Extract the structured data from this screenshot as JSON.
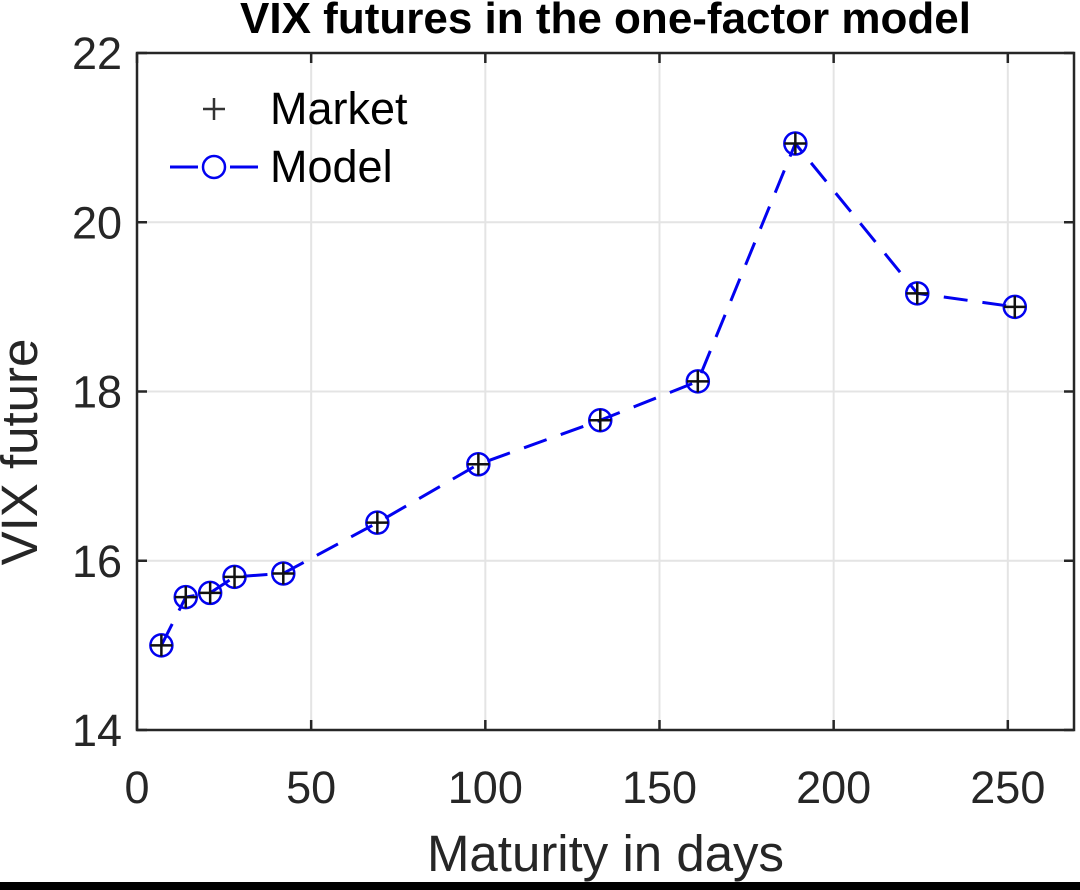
{
  "chart_data": {
    "type": "line",
    "title": "VIX futures in the one-factor model",
    "xlabel": "Maturity in days",
    "ylabel": "VIX future",
    "x": [
      7,
      14,
      21,
      28,
      42,
      69,
      98,
      133,
      161,
      189,
      224,
      252
    ],
    "series": [
      {
        "name": "Market",
        "marker": "plus",
        "line": "none",
        "color": "#111111",
        "values": [
          15.0,
          15.57,
          15.62,
          15.81,
          15.85,
          16.45,
          17.14,
          17.66,
          18.12,
          20.93,
          19.16,
          19.0
        ]
      },
      {
        "name": "Model",
        "marker": "circle",
        "line": "dashed",
        "color": "#0202f0",
        "values": [
          15.0,
          15.57,
          15.62,
          15.81,
          15.85,
          16.45,
          17.14,
          17.66,
          18.12,
          20.93,
          19.16,
          19.0
        ]
      }
    ],
    "xlim": [
      0,
      269
    ],
    "ylim": [
      14,
      22
    ],
    "xticks": [
      0,
      50,
      100,
      150,
      200,
      250
    ],
    "yticks": [
      14,
      16,
      18,
      20,
      22
    ],
    "grid": true,
    "legend_position": "top-left"
  },
  "legend": {
    "items": [
      {
        "label": "Market",
        "marker": "plus-marker-icon"
      },
      {
        "label": "Model",
        "marker": "dashed-circle-marker-icon"
      }
    ]
  },
  "colors": {
    "axis": "#262626",
    "grid": "#e4e4e4",
    "model_blue": "#0202f0",
    "market_black": "#111111",
    "title": "#000000",
    "background": "#ffffff",
    "bottom_bar": "#000000"
  }
}
